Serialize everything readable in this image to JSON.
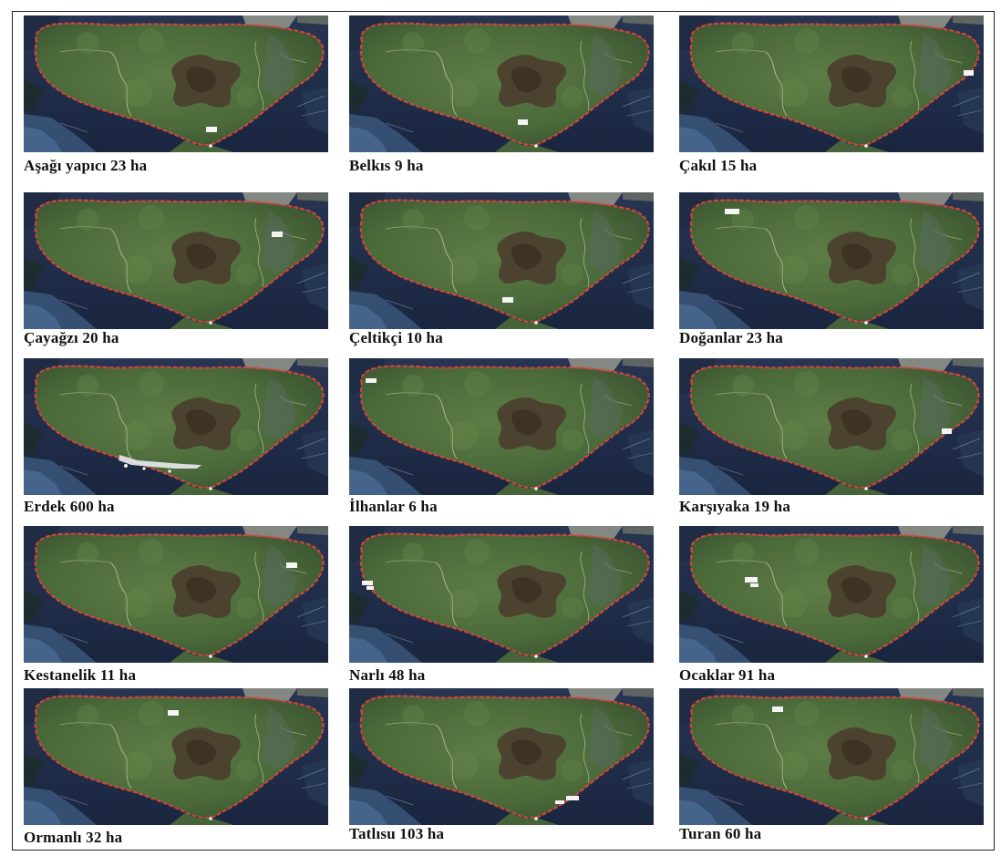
{
  "figure": {
    "panels": [
      {
        "label": "Aşağı yapıcı 23 ha",
        "settlement": "Aşağı yapıcı",
        "area_ha": 23
      },
      {
        "label": "Belkıs 9 ha",
        "settlement": "Belkıs",
        "area_ha": 9
      },
      {
        "label": "Çakıl 15 ha",
        "settlement": "Çakıl",
        "area_ha": 15
      },
      {
        "label": "Çayağzı 20 ha",
        "settlement": "Çayağzı",
        "area_ha": 20
      },
      {
        "label": "Çeltikçi 10 ha",
        "settlement": "Çeltikçi",
        "area_ha": 10
      },
      {
        "label": "Doğanlar 23 ha",
        "settlement": "Doğanlar",
        "area_ha": 23
      },
      {
        "label": "Erdek 600 ha",
        "settlement": "Erdek",
        "area_ha": 600
      },
      {
        "label": "İlhanlar 6 ha",
        "settlement": "İlhanlar",
        "area_ha": 6
      },
      {
        "label": "Karşıyaka 19 ha",
        "settlement": "Karşıyaka",
        "area_ha": 19
      },
      {
        "label": "Kestanelik 11 ha",
        "settlement": "Kestanelik",
        "area_ha": 11
      },
      {
        "label": "Narlı 48 ha",
        "settlement": "Narlı",
        "area_ha": 48
      },
      {
        "label": "Ocaklar 91 ha",
        "settlement": "Ocaklar",
        "area_ha": 91
      },
      {
        "label": "Ormanlı 32 ha",
        "settlement": "Ormanlı",
        "area_ha": 32
      },
      {
        "label": "Tatlısu 103 ha",
        "settlement": "Tatlısu",
        "area_ha": 103
      },
      {
        "label": "Turan 60 ha",
        "settlement": "Turan",
        "area_ha": 60
      }
    ]
  },
  "colors": {
    "sea": "#1f2c47",
    "land": "#4f6d3c",
    "forest_dark": "#3f3a2c",
    "coastline": "#d8453c",
    "settlement_marker": "#f4f4f4"
  }
}
